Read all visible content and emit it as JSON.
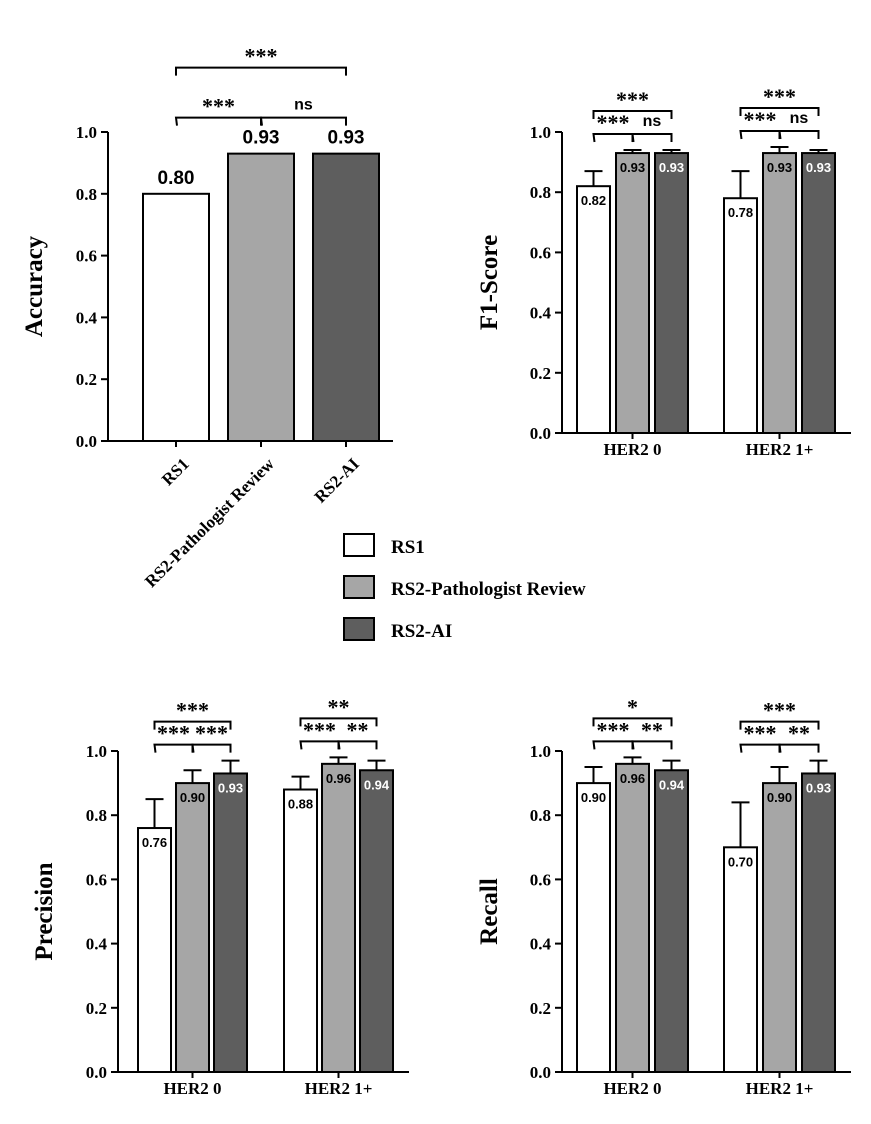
{
  "colors": {
    "RS1": "#ffffff",
    "RS2-Pathologist Review": "#a6a6a6",
    "RS2-AI": "#5e5e5e",
    "axis": "#000000"
  },
  "legend": {
    "items": [
      {
        "label": "RS1",
        "color": "#ffffff"
      },
      {
        "label": "RS2-Pathologist Review",
        "color": "#a6a6a6"
      },
      {
        "label": "RS2-AI",
        "color": "#5e5e5e"
      }
    ]
  },
  "chart_data": [
    {
      "type": "bar",
      "ylabel": "Accuracy",
      "ylim": [
        0,
        1.0
      ],
      "yticks": [
        "0.0",
        "0.2",
        "0.4",
        "0.6",
        "0.8",
        "1.0"
      ],
      "categories": [
        "RS1",
        "RS2-Pathologist Review",
        "RS2-AI"
      ],
      "values": [
        0.8,
        0.93,
        0.93
      ],
      "value_labels": [
        "0.80",
        "0.93",
        "0.93"
      ],
      "significance": [
        {
          "from": 0,
          "to": 1,
          "label": "***"
        },
        {
          "from": 1,
          "to": 2,
          "label": "ns"
        },
        {
          "from": 0,
          "to": 2,
          "label": "***"
        }
      ]
    },
    {
      "type": "bar",
      "ylabel": "F1-Score",
      "ylim": [
        0,
        1.0
      ],
      "yticks": [
        "0.0",
        "0.2",
        "0.4",
        "0.6",
        "0.8",
        "1.0"
      ],
      "categories": [
        "HER2 0",
        "HER2 1+"
      ],
      "series": [
        {
          "name": "RS1",
          "values": [
            0.82,
            0.78
          ],
          "errors": [
            0.05,
            0.09
          ],
          "value_labels": [
            "0.82",
            "0.78"
          ]
        },
        {
          "name": "RS2-Pathologist Review",
          "values": [
            0.93,
            0.93
          ],
          "errors": [
            0.01,
            0.02
          ],
          "value_labels": [
            "0.93",
            "0.93"
          ]
        },
        {
          "name": "RS2-AI",
          "values": [
            0.93,
            0.93
          ],
          "errors": [
            0.01,
            0.01
          ],
          "value_labels": [
            "0.93",
            "0.93"
          ]
        }
      ],
      "significance": [
        [
          {
            "from": 0,
            "to": 1,
            "label": "***"
          },
          {
            "from": 1,
            "to": 2,
            "label": "ns"
          },
          {
            "from": 0,
            "to": 2,
            "label": "***"
          }
        ],
        [
          {
            "from": 0,
            "to": 1,
            "label": "***"
          },
          {
            "from": 1,
            "to": 2,
            "label": "ns"
          },
          {
            "from": 0,
            "to": 2,
            "label": "***"
          }
        ]
      ]
    },
    {
      "type": "bar",
      "ylabel": "Precision",
      "ylim": [
        0,
        1.0
      ],
      "yticks": [
        "0.0",
        "0.2",
        "0.4",
        "0.6",
        "0.8",
        "1.0"
      ],
      "categories": [
        "HER2 0",
        "HER2 1+"
      ],
      "series": [
        {
          "name": "RS1",
          "values": [
            0.76,
            0.88
          ],
          "errors": [
            0.09,
            0.04
          ],
          "value_labels": [
            "0.76",
            "0.88"
          ]
        },
        {
          "name": "RS2-Pathologist Review",
          "values": [
            0.9,
            0.96
          ],
          "errors": [
            0.04,
            0.02
          ],
          "value_labels": [
            "0.90",
            "0.96"
          ]
        },
        {
          "name": "RS2-AI",
          "values": [
            0.93,
            0.94
          ],
          "errors": [
            0.04,
            0.03
          ],
          "value_labels": [
            "0.93",
            "0.94"
          ]
        }
      ],
      "significance": [
        [
          {
            "from": 0,
            "to": 1,
            "label": "***"
          },
          {
            "from": 1,
            "to": 2,
            "label": "***"
          },
          {
            "from": 0,
            "to": 2,
            "label": "***"
          }
        ],
        [
          {
            "from": 0,
            "to": 1,
            "label": "***"
          },
          {
            "from": 1,
            "to": 2,
            "label": "**"
          },
          {
            "from": 0,
            "to": 2,
            "label": "**"
          }
        ]
      ]
    },
    {
      "type": "bar",
      "ylabel": "Recall",
      "ylim": [
        0,
        1.0
      ],
      "yticks": [
        "0.0",
        "0.2",
        "0.4",
        "0.6",
        "0.8",
        "1.0"
      ],
      "categories": [
        "HER2 0",
        "HER2 1+"
      ],
      "series": [
        {
          "name": "RS1",
          "values": [
            0.9,
            0.7
          ],
          "errors": [
            0.05,
            0.14
          ],
          "value_labels": [
            "0.90",
            "0.70"
          ]
        },
        {
          "name": "RS2-Pathologist Review",
          "values": [
            0.96,
            0.9
          ],
          "errors": [
            0.02,
            0.05
          ],
          "value_labels": [
            "0.96",
            "0.90"
          ]
        },
        {
          "name": "RS2-AI",
          "values": [
            0.94,
            0.93
          ],
          "errors": [
            0.03,
            0.04
          ],
          "value_labels": [
            "0.94",
            "0.93"
          ]
        }
      ],
      "significance": [
        [
          {
            "from": 0,
            "to": 1,
            "label": "***"
          },
          {
            "from": 1,
            "to": 2,
            "label": "**"
          },
          {
            "from": 0,
            "to": 2,
            "label": "*"
          }
        ],
        [
          {
            "from": 0,
            "to": 1,
            "label": "***"
          },
          {
            "from": 1,
            "to": 2,
            "label": "**"
          },
          {
            "from": 0,
            "to": 2,
            "label": "***"
          }
        ]
      ]
    }
  ]
}
